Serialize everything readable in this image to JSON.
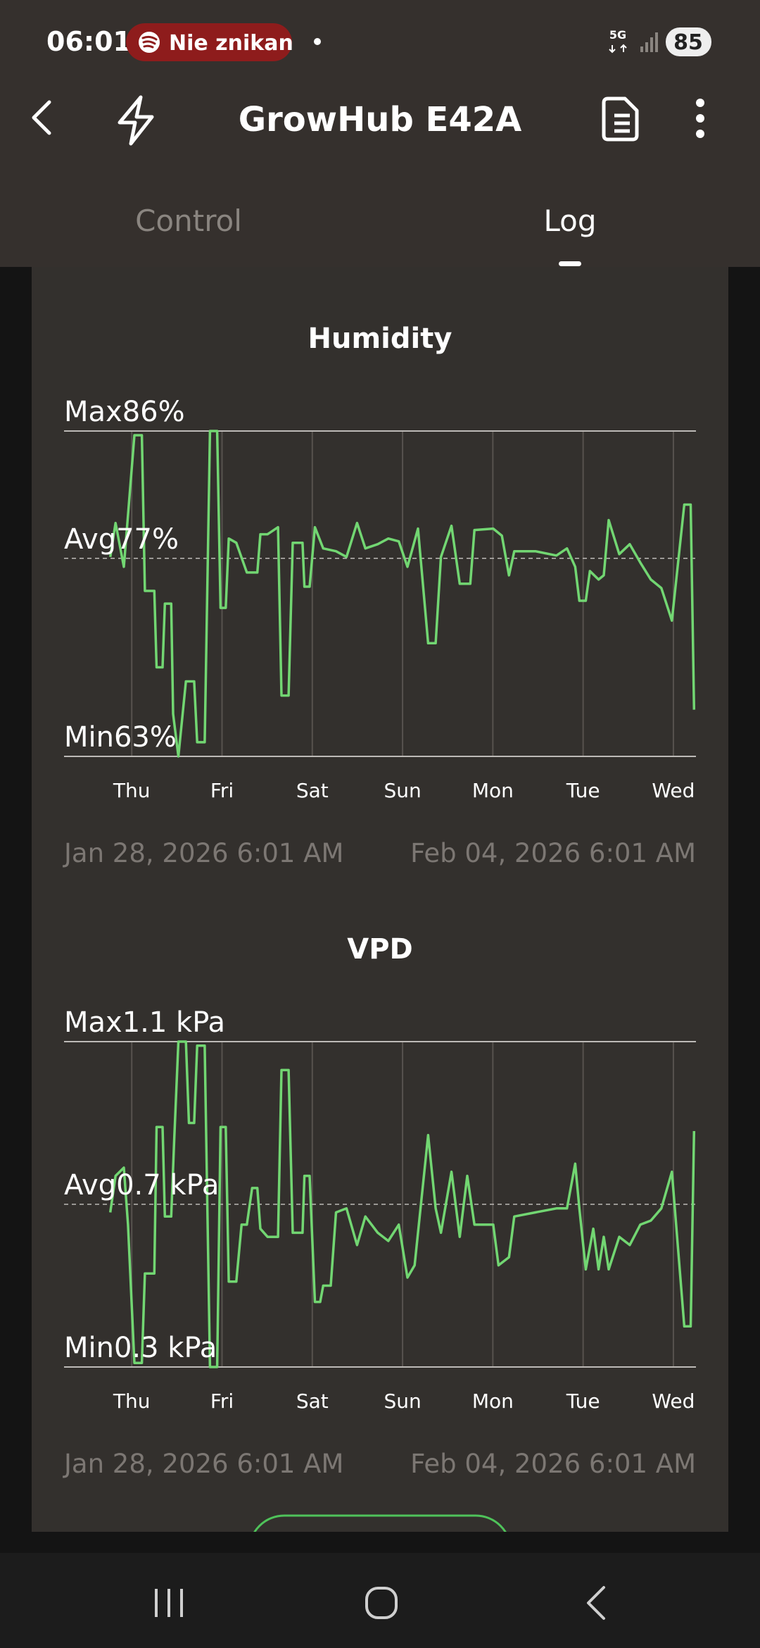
{
  "status_bar": {
    "time": "06:01",
    "notification": "Nie znikan",
    "network": "5G",
    "battery": "85"
  },
  "app_bar": {
    "title": "GrowHub E42A"
  },
  "tabs": [
    "Control",
    "Log"
  ],
  "chart_data": [
    {
      "type": "line",
      "title": "Humidity",
      "color": "#72d672",
      "xlim": [
        0,
        168
      ],
      "xticks": [
        {
          "value": 18,
          "label": "Thu"
        },
        {
          "value": 42,
          "label": "Fri"
        },
        {
          "value": 66,
          "label": "Sat"
        },
        {
          "value": 90,
          "label": "Sun"
        },
        {
          "value": 114,
          "label": "Mon"
        },
        {
          "value": 138,
          "label": "Tue"
        },
        {
          "value": 162,
          "label": "Wed"
        }
      ],
      "ylim": [
        63,
        86
      ],
      "yticks": [
        {
          "value": 63,
          "label": "Min63%"
        },
        {
          "value": 77,
          "label": "Avg77%"
        },
        {
          "value": 86,
          "label": "Max86%"
        }
      ],
      "start_label": "Jan 28, 2026 6:01 AM",
      "end_label": "Feb 04, 2026 6:01 AM",
      "x": [
        12.3,
        13.7,
        15.9,
        18.7,
        20.7,
        21.5,
        24.0,
        24.6,
        26.2,
        26.8,
        28.5,
        29.0,
        30.4,
        32.4,
        34.6,
        35.4,
        37.4,
        38.8,
        40.7,
        41.6,
        43.0,
        43.8,
        45.8,
        48.6,
        51.4,
        52.2,
        54.1,
        56.9,
        57.8,
        59.7,
        60.8,
        63.4,
        63.9,
        65.3,
        66.7,
        68.9,
        72.3,
        75.1,
        77.9,
        80.1,
        83.4,
        86.2,
        89.0,
        91.3,
        94.1,
        96.8,
        98.8,
        100.2,
        103.0,
        105.2,
        108.0,
        109.1,
        114.1,
        116.4,
        118.3,
        119.7,
        125.3,
        130.9,
        133.7,
        135.9,
        137.0,
        138.7,
        139.8,
        142.1,
        143.5,
        144.8,
        147.6,
        150.4,
        153.2,
        156.0,
        158.8,
        161.6,
        164.9,
        166.6,
        167.5
      ],
      "values": [
        77.1,
        79.5,
        76.4,
        85.7,
        85.7,
        74.7,
        74.7,
        69.3,
        69.3,
        73.8,
        73.8,
        66.0,
        63.0,
        68.3,
        68.3,
        64.0,
        64.0,
        86.0,
        86.0,
        73.5,
        73.5,
        78.4,
        78.1,
        76.0,
        76.0,
        78.7,
        78.7,
        79.2,
        67.3,
        67.3,
        78.1,
        78.1,
        75.0,
        75.0,
        79.2,
        77.7,
        77.5,
        77.1,
        79.5,
        77.7,
        78.0,
        78.4,
        78.2,
        76.4,
        79.1,
        71.0,
        71.0,
        77.1,
        79.3,
        75.2,
        75.2,
        79.0,
        79.1,
        78.6,
        75.8,
        77.5,
        77.5,
        77.2,
        77.7,
        76.4,
        74.0,
        74.0,
        76.1,
        75.5,
        75.8,
        79.7,
        77.3,
        78.0,
        76.7,
        75.5,
        74.9,
        72.6,
        80.8,
        80.8,
        66.3
      ]
    },
    {
      "type": "line",
      "title": "VPD",
      "color": "#72d672",
      "xlim": [
        0,
        168
      ],
      "xticks": [
        {
          "value": 18,
          "label": "Thu"
        },
        {
          "value": 42,
          "label": "Fri"
        },
        {
          "value": 66,
          "label": "Sat"
        },
        {
          "value": 90,
          "label": "Sun"
        },
        {
          "value": 114,
          "label": "Mon"
        },
        {
          "value": 138,
          "label": "Tue"
        },
        {
          "value": 162,
          "label": "Wed"
        }
      ],
      "ylim": [
        0.3,
        1.1
      ],
      "yticks": [
        {
          "value": 0.3,
          "label": "Min0.3 kPa"
        },
        {
          "value": 0.7,
          "label": "Avg0.7 kPa"
        },
        {
          "value": 1.1,
          "label": "Max1.1 kPa"
        }
      ],
      "start_label": "Jan 28, 2026 6:01 AM",
      "end_label": "Feb 04, 2026 6:01 AM",
      "x": [
        12.3,
        13.7,
        15.9,
        17.0,
        18.7,
        20.7,
        21.5,
        24.0,
        24.6,
        26.2,
        26.8,
        28.5,
        29.3,
        30.4,
        32.4,
        33.2,
        34.6,
        35.4,
        37.4,
        38.8,
        40.7,
        41.6,
        43.0,
        43.8,
        45.8,
        47.2,
        48.6,
        50.0,
        51.4,
        52.2,
        54.1,
        56.9,
        57.8,
        59.7,
        60.8,
        63.4,
        63.9,
        65.3,
        66.7,
        68.1,
        68.9,
        70.9,
        72.3,
        75.1,
        77.9,
        80.1,
        83.4,
        86.2,
        89.0,
        91.3,
        93.2,
        96.8,
        98.8,
        100.2,
        103.0,
        105.2,
        107.2,
        109.1,
        114.1,
        115.5,
        118.3,
        119.7,
        125.3,
        130.9,
        133.7,
        135.9,
        137.0,
        138.7,
        140.7,
        142.1,
        143.5,
        144.8,
        147.6,
        150.4,
        153.2,
        156.0,
        158.8,
        161.6,
        164.9,
        166.6,
        167.5
      ],
      "values": [
        0.68,
        0.77,
        0.79,
        0.65,
        0.31,
        0.31,
        0.53,
        0.53,
        0.89,
        0.89,
        0.67,
        0.67,
        0.86,
        1.1,
        1.1,
        0.9,
        0.9,
        1.09,
        1.09,
        0.3,
        0.3,
        0.89,
        0.89,
        0.51,
        0.51,
        0.65,
        0.65,
        0.74,
        0.74,
        0.64,
        0.62,
        0.62,
        1.03,
        1.03,
        0.63,
        0.63,
        0.77,
        0.77,
        0.46,
        0.46,
        0.5,
        0.5,
        0.68,
        0.69,
        0.6,
        0.67,
        0.63,
        0.61,
        0.65,
        0.52,
        0.55,
        0.87,
        0.69,
        0.63,
        0.78,
        0.62,
        0.77,
        0.65,
        0.65,
        0.55,
        0.57,
        0.67,
        0.68,
        0.69,
        0.69,
        0.8,
        0.69,
        0.54,
        0.64,
        0.54,
        0.62,
        0.54,
        0.62,
        0.6,
        0.65,
        0.66,
        0.69,
        0.78,
        0.4,
        0.4,
        0.88
      ]
    }
  ]
}
